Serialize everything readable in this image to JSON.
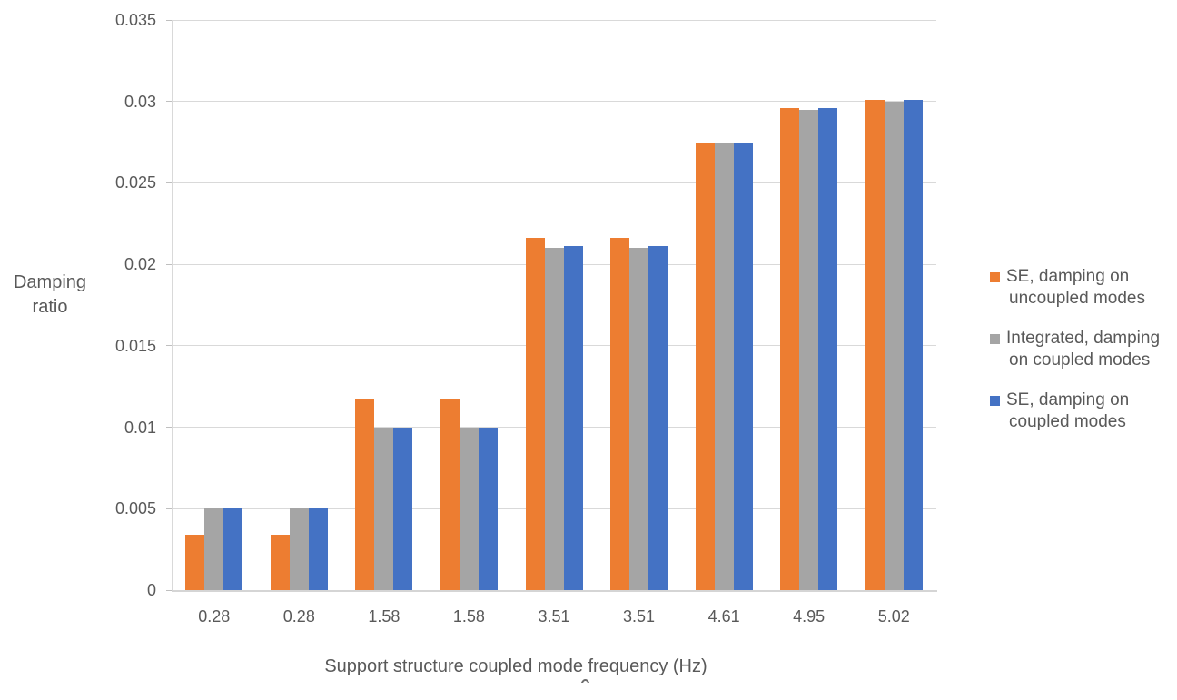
{
  "chart_data": {
    "type": "bar",
    "title": "",
    "xlabel": "Support structure coupled mode frequency (Hz)",
    "ylabel": "Damping ratio",
    "categories": [
      "0.28",
      "0.28",
      "1.58",
      "1.58",
      "3.51",
      "3.51",
      "4.61",
      "4.95",
      "5.02"
    ],
    "series": [
      {
        "name": "SE, damping on uncoupled modes",
        "color": "#ED7D31",
        "values": [
          0.0034,
          0.0034,
          0.0117,
          0.0117,
          0.0216,
          0.0216,
          0.0274,
          0.0296,
          0.0301
        ]
      },
      {
        "name": "Integrated, damping on coupled modes",
        "color": "#A5A5A5",
        "values": [
          0.005,
          0.005,
          0.01,
          0.01,
          0.021,
          0.021,
          0.0275,
          0.0295,
          0.03
        ]
      },
      {
        "name": "SE, damping on coupled modes",
        "color": "#4472C4",
        "values": [
          0.005,
          0.005,
          0.01,
          0.01,
          0.0211,
          0.0211,
          0.0275,
          0.0296,
          0.0301
        ]
      }
    ],
    "ylim": [
      0,
      0.035
    ],
    "ytick_interval": 0.005,
    "ytick_labels": [
      "0",
      "0.005",
      "0.01",
      "0.015",
      "0.02",
      "0.025",
      "0.03",
      "0.035"
    ],
    "grid": true,
    "legend_position": "right",
    "legend_items": [
      {
        "color": "#ED7D31",
        "lines": [
          "SE, damping on",
          "uncoupled modes"
        ]
      },
      {
        "color": "#A5A5A5",
        "lines": [
          "Integrated, damping",
          "on coupled modes"
        ]
      },
      {
        "color": "#4472C4",
        "lines": [
          "SE, damping on",
          "coupled modes"
        ]
      }
    ],
    "text_color": "#595959",
    "gridline_color": "#D9D9D9"
  }
}
